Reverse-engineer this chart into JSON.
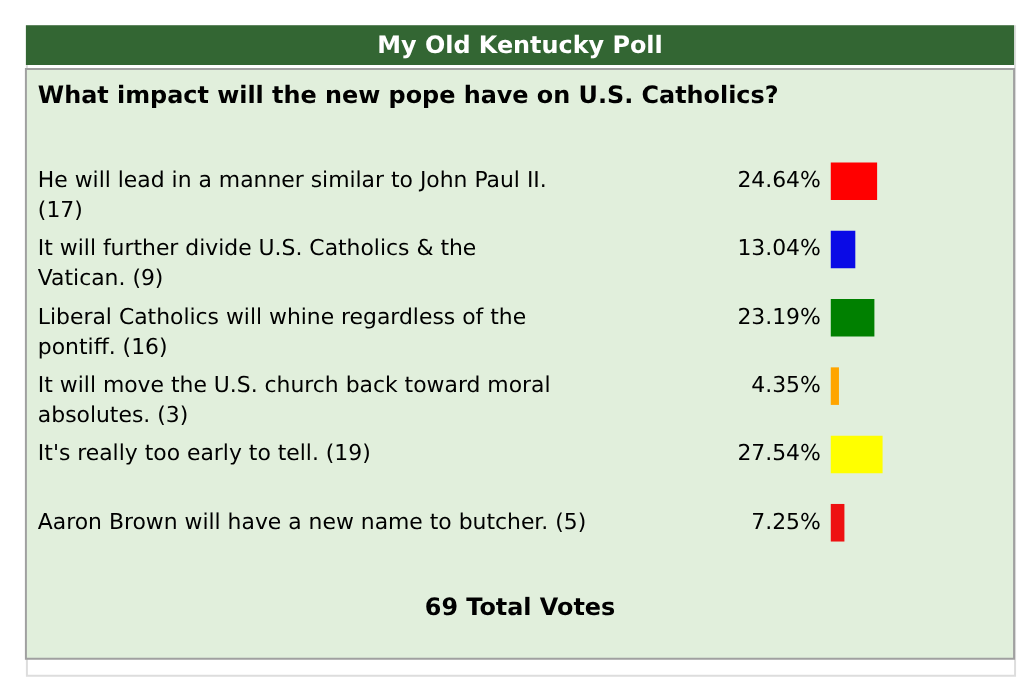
{
  "chart_data": {
    "type": "bar",
    "orientation": "horizontal",
    "title": "My Old Kentucky Poll",
    "subtitle": "What impact will the new pope have on U.S. Catholics?",
    "categories": [
      "He will lead in a manner similar to John Paul II. (17)",
      "It will further divide U.S. Catholics & the Vatican. (9)",
      "Liberal Catholics will whine regardless of the pontiff. (16)",
      "It will move the U.S. church back toward moral absolutes. (3)",
      "It's really too early to tell. (19)",
      "Aaron Brown will have a new name to butcher. (5)"
    ],
    "values": [
      24.64,
      13.04,
      23.19,
      4.35,
      27.54,
      7.25
    ],
    "colors": [
      "#ff0000",
      "#0a0ae6",
      "#008000",
      "#ffa500",
      "#ffff00",
      "#ee1111"
    ],
    "value_labels": [
      "24.64%",
      "13.04%",
      "23.19%",
      "4.35%",
      "27.54%",
      "7.25%"
    ],
    "annotations": [
      "69 Total Votes"
    ]
  }
}
